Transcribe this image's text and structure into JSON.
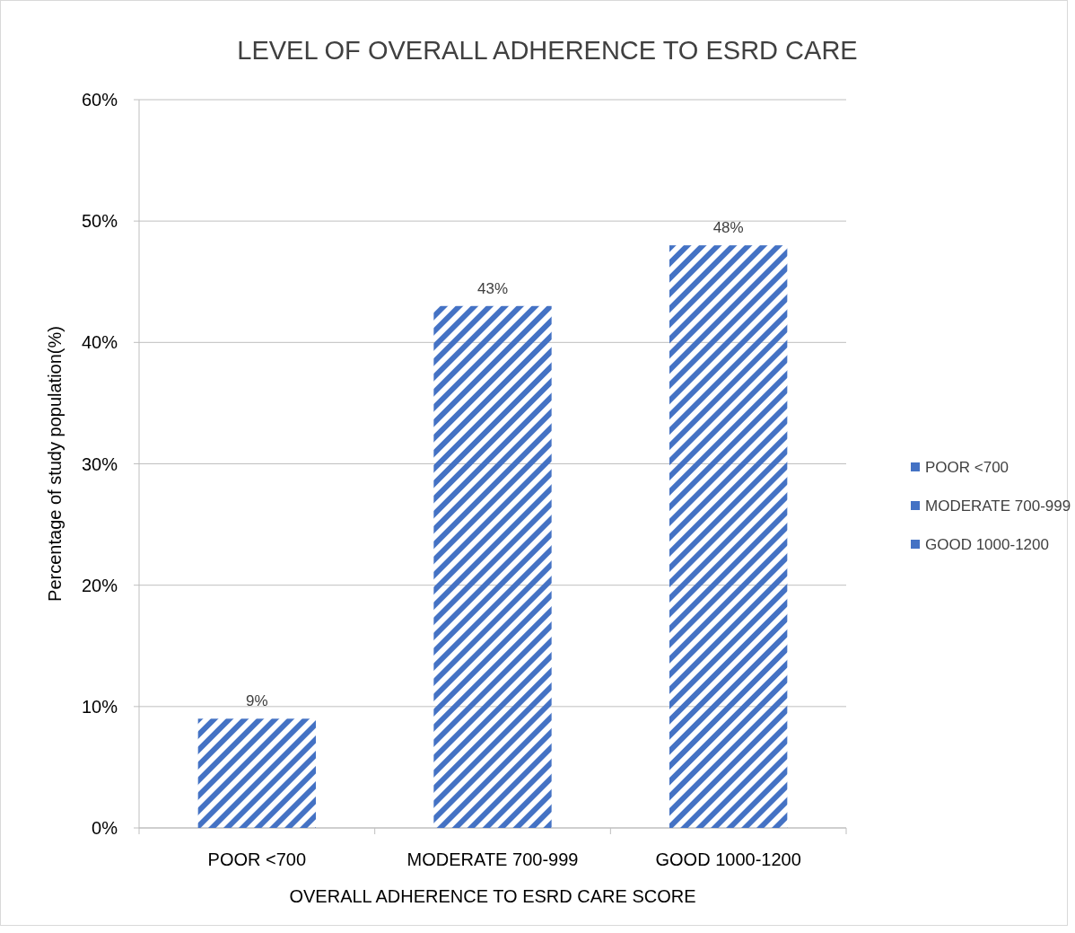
{
  "chart_data": {
    "type": "bar",
    "title": "LEVEL OF OVERALL ADHERENCE TO ESRD CARE",
    "xlabel": "OVERALL ADHERENCE TO ESRD CARE SCORE",
    "ylabel": "Percentage of study population(%)",
    "categories": [
      "POOR <700",
      "MODERATE 700-999",
      "GOOD 1000-1200"
    ],
    "series": [
      {
        "name": "POOR <700",
        "color": "#4472c4",
        "values": [
          9,
          null,
          null
        ],
        "value_labels": [
          "9%",
          null,
          null
        ]
      },
      {
        "name": "MODERATE 700-999",
        "color": "#4472c4",
        "values": [
          null,
          43,
          null
        ],
        "value_labels": [
          null,
          "43%",
          null
        ]
      },
      {
        "name": "GOOD 1000-1200",
        "color": "#4472c4",
        "values": [
          null,
          null,
          48
        ],
        "value_labels": [
          null,
          null,
          "48%"
        ]
      }
    ],
    "ylim": [
      0,
      60
    ],
    "yticks": [
      {
        "value": 0,
        "label": "0%"
      },
      {
        "value": 10,
        "label": "10%"
      },
      {
        "value": 20,
        "label": "20%"
      },
      {
        "value": 30,
        "label": "30%"
      },
      {
        "value": 40,
        "label": "40%"
      },
      {
        "value": 50,
        "label": "50%"
      },
      {
        "value": 60,
        "label": "60%"
      }
    ],
    "grid": "y",
    "legend": "right"
  }
}
